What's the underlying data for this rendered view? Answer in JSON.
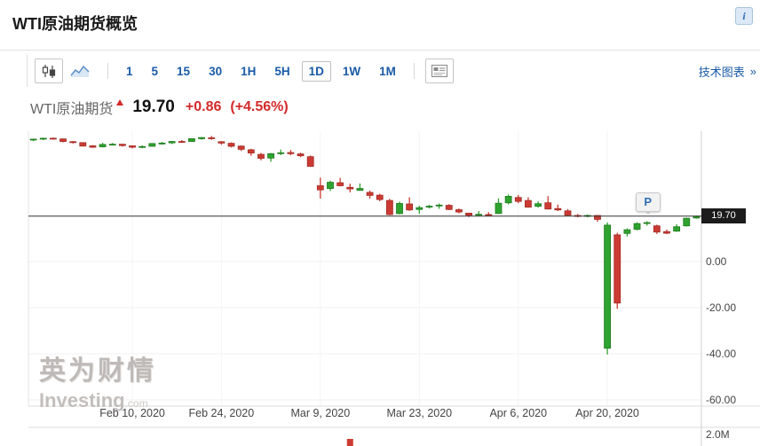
{
  "widget": {
    "title": "WTI原油期货概览",
    "info_icon": "i"
  },
  "toolbar": {
    "chart_types": [
      "candlestick",
      "line"
    ],
    "intervals": [
      "1",
      "5",
      "15",
      "30",
      "1H",
      "5H",
      "1D",
      "1W",
      "1M"
    ],
    "selected_interval": "1D",
    "link": "技术图表",
    "link_arrow": "»"
  },
  "quote": {
    "name": "WTI原油期货",
    "direction": "up",
    "price": "19.70",
    "change": "+0.86",
    "change_percent": "(+4.56%)"
  },
  "watermark": {
    "cn": "英为财情",
    "en": "Investing",
    "tld": ".com"
  },
  "colors": {
    "up": "#2fa32f",
    "up_border": "#1d7a1d",
    "down": "#cc3b33",
    "down_border": "#a32a24",
    "accent_blue": "#1a5ba6",
    "quote_red": "#d42a2a",
    "price_line": "#333333",
    "badge_bg": "#1c1c1c",
    "grid": "#f0f0f0",
    "axis_line": "#cccccc",
    "axis_text": "#444444"
  },
  "chart_data": {
    "type": "candlestick",
    "title": "WTI原油期货 1D",
    "current_price": "19.70",
    "current_price_value": 19.7,
    "x_labels": [
      "Feb 10, 2020",
      "Feb 24, 2020",
      "Mar 9, 2020",
      "Mar 23, 2020",
      "Apr 6, 2020",
      "Apr 20, 2020"
    ],
    "y_labels": [
      {
        "text": "0.00",
        "value": 0
      },
      {
        "text": "-20.00",
        "value": -20
      },
      {
        "text": "-40.00",
        "value": -40
      },
      {
        "text": "-60.00",
        "value": -60
      }
    ],
    "y_range": [
      -62,
      57
    ],
    "volume_label": "2.0M",
    "volume_visible_bar_date": "Mar 12, 2020",
    "marker": {
      "label": "P",
      "date": "Apr 24, 2020"
    },
    "candles": [
      {
        "d": "Jan 27, 2020",
        "o": 53.0,
        "h": 53.3,
        "l": 52.2,
        "c": 53.1
      },
      {
        "d": "Jan 28, 2020",
        "o": 53.1,
        "h": 53.7,
        "l": 52.7,
        "c": 53.5
      },
      {
        "d": "Jan 29, 2020",
        "o": 53.5,
        "h": 53.8,
        "l": 52.9,
        "c": 53.3
      },
      {
        "d": "Jan 30, 2020",
        "o": 53.2,
        "h": 53.4,
        "l": 51.7,
        "c": 52.1
      },
      {
        "d": "Jan 31, 2020",
        "o": 52.0,
        "h": 52.3,
        "l": 51.2,
        "c": 51.6
      },
      {
        "d": "Feb 3, 2020",
        "o": 51.6,
        "h": 51.7,
        "l": 49.9,
        "c": 50.1
      },
      {
        "d": "Feb 4, 2020",
        "o": 50.2,
        "h": 50.5,
        "l": 49.3,
        "c": 49.6
      },
      {
        "d": "Feb 5, 2020",
        "o": 49.8,
        "h": 51.5,
        "l": 49.5,
        "c": 50.8
      },
      {
        "d": "Feb 6, 2020",
        "o": 50.8,
        "h": 51.4,
        "l": 50.4,
        "c": 50.9
      },
      {
        "d": "Feb 7, 2020",
        "o": 50.9,
        "h": 51.0,
        "l": 49.9,
        "c": 50.3
      },
      {
        "d": "Feb 10, 2020",
        "o": 50.2,
        "h": 50.4,
        "l": 49.1,
        "c": 49.6
      },
      {
        "d": "Feb 11, 2020",
        "o": 49.7,
        "h": 50.4,
        "l": 49.2,
        "c": 49.9
      },
      {
        "d": "Feb 12, 2020",
        "o": 50.0,
        "h": 51.4,
        "l": 49.9,
        "c": 51.2
      },
      {
        "d": "Feb 13, 2020",
        "o": 51.1,
        "h": 51.9,
        "l": 50.7,
        "c": 51.4
      },
      {
        "d": "Feb 14, 2020",
        "o": 51.5,
        "h": 52.3,
        "l": 51.0,
        "c": 52.1
      },
      {
        "d": "Feb 18, 2020",
        "o": 52.1,
        "h": 52.7,
        "l": 51.5,
        "c": 52.0
      },
      {
        "d": "Feb 19, 2020",
        "o": 52.1,
        "h": 53.5,
        "l": 51.9,
        "c": 53.3
      },
      {
        "d": "Feb 20, 2020",
        "o": 53.3,
        "h": 54.0,
        "l": 52.9,
        "c": 53.8
      },
      {
        "d": "Feb 21, 2020",
        "o": 53.7,
        "h": 54.5,
        "l": 52.8,
        "c": 53.4
      },
      {
        "d": "Feb 24, 2020",
        "o": 52.0,
        "h": 52.2,
        "l": 50.7,
        "c": 51.4
      },
      {
        "d": "Feb 25, 2020",
        "o": 51.3,
        "h": 51.7,
        "l": 49.5,
        "c": 50.0
      },
      {
        "d": "Feb 26, 2020",
        "o": 50.1,
        "h": 50.3,
        "l": 48.0,
        "c": 48.7
      },
      {
        "d": "Feb 27, 2020",
        "o": 48.5,
        "h": 48.9,
        "l": 45.9,
        "c": 47.1
      },
      {
        "d": "Feb 28, 2020",
        "o": 46.5,
        "h": 47.1,
        "l": 43.9,
        "c": 44.8
      },
      {
        "d": "Mar 2, 2020",
        "o": 44.9,
        "h": 47.1,
        "l": 43.3,
        "c": 46.8
      },
      {
        "d": "Mar 3, 2020",
        "o": 46.9,
        "h": 48.6,
        "l": 46.2,
        "c": 47.2
      },
      {
        "d": "Mar 4, 2020",
        "o": 47.3,
        "h": 48.4,
        "l": 46.1,
        "c": 46.8
      },
      {
        "d": "Mar 5, 2020",
        "o": 46.7,
        "h": 47.2,
        "l": 45.3,
        "c": 45.9
      },
      {
        "d": "Mar 6, 2020",
        "o": 45.5,
        "h": 46.0,
        "l": 41.1,
        "c": 41.3
      },
      {
        "d": "Mar 9, 2020",
        "o": 32.9,
        "h": 36.4,
        "l": 27.3,
        "c": 31.1
      },
      {
        "d": "Mar 10, 2020",
        "o": 31.7,
        "h": 35.1,
        "l": 30.6,
        "c": 34.4
      },
      {
        "d": "Mar 11, 2020",
        "o": 34.2,
        "h": 36.3,
        "l": 32.6,
        "c": 32.9
      },
      {
        "d": "Mar 12, 2020",
        "o": 32.2,
        "h": 33.8,
        "l": 30.0,
        "c": 31.5
      },
      {
        "d": "Mar 13, 2020",
        "o": 30.9,
        "h": 33.9,
        "l": 30.8,
        "c": 31.7
      },
      {
        "d": "Mar 16, 2020",
        "o": 30.0,
        "h": 30.8,
        "l": 27.3,
        "c": 28.7
      },
      {
        "d": "Mar 17, 2020",
        "o": 28.8,
        "h": 29.4,
        "l": 26.2,
        "c": 26.9
      },
      {
        "d": "Mar 18, 2020",
        "o": 26.5,
        "h": 27.2,
        "l": 20.1,
        "c": 20.4
      },
      {
        "d": "Mar 19, 2020",
        "o": 20.8,
        "h": 26.0,
        "l": 20.5,
        "c": 25.2
      },
      {
        "d": "Mar 20, 2020",
        "o": 25.0,
        "h": 27.9,
        "l": 22.0,
        "c": 22.4
      },
      {
        "d": "Mar 23, 2020",
        "o": 22.6,
        "h": 24.2,
        "l": 20.8,
        "c": 23.4
      },
      {
        "d": "Mar 24, 2020",
        "o": 23.7,
        "h": 24.6,
        "l": 23.0,
        "c": 24.0
      },
      {
        "d": "Mar 25, 2020",
        "o": 24.2,
        "h": 25.2,
        "l": 22.9,
        "c": 24.5
      },
      {
        "d": "Mar 26, 2020",
        "o": 24.4,
        "h": 24.9,
        "l": 22.3,
        "c": 22.6
      },
      {
        "d": "Mar 27, 2020",
        "o": 22.5,
        "h": 23.0,
        "l": 20.9,
        "c": 21.5
      },
      {
        "d": "Mar 30, 2020",
        "o": 21.0,
        "h": 21.1,
        "l": 19.3,
        "c": 20.1
      },
      {
        "d": "Mar 31, 2020",
        "o": 20.3,
        "h": 21.9,
        "l": 19.9,
        "c": 20.5
      },
      {
        "d": "Apr 1, 2020",
        "o": 20.4,
        "h": 21.4,
        "l": 19.9,
        "c": 20.3
      },
      {
        "d": "Apr 2, 2020",
        "o": 20.9,
        "h": 27.4,
        "l": 20.6,
        "c": 25.3
      },
      {
        "d": "Apr 3, 2020",
        "o": 25.5,
        "h": 29.1,
        "l": 24.8,
        "c": 28.3
      },
      {
        "d": "Apr 6, 2020",
        "o": 27.8,
        "h": 28.9,
        "l": 25.3,
        "c": 26.1
      },
      {
        "d": "Apr 7, 2020",
        "o": 26.5,
        "h": 27.9,
        "l": 23.4,
        "c": 23.6
      },
      {
        "d": "Apr 8, 2020",
        "o": 24.0,
        "h": 26.2,
        "l": 23.4,
        "c": 25.1
      },
      {
        "d": "Apr 9, 2020",
        "o": 25.5,
        "h": 28.4,
        "l": 22.6,
        "c": 22.8
      },
      {
        "d": "Apr 13, 2020",
        "o": 23.0,
        "h": 24.7,
        "l": 21.9,
        "c": 22.4
      },
      {
        "d": "Apr 14, 2020",
        "o": 22.0,
        "h": 22.8,
        "l": 19.7,
        "c": 20.1
      },
      {
        "d": "Apr 15, 2020",
        "o": 20.0,
        "h": 20.6,
        "l": 19.2,
        "c": 19.9
      },
      {
        "d": "Apr 16, 2020",
        "o": 19.9,
        "h": 20.4,
        "l": 19.2,
        "c": 20.0
      },
      {
        "d": "Apr 17, 2020",
        "o": 20.0,
        "h": 20.1,
        "l": 17.3,
        "c": 18.3
      },
      {
        "d": "Apr 20, 2020",
        "o": -37.6,
        "h": 17.0,
        "l": -40.3,
        "c": 15.8
      },
      {
        "d": "Apr 21, 2020",
        "o": 11.6,
        "h": 12.5,
        "l": -20.5,
        "c": -18.0
      },
      {
        "d": "Apr 22, 2020",
        "o": 12.2,
        "h": 14.4,
        "l": 10.9,
        "c": 13.8
      },
      {
        "d": "Apr 23, 2020",
        "o": 14.0,
        "h": 17.0,
        "l": 13.5,
        "c": 16.5
      },
      {
        "d": "Apr 24, 2020",
        "o": 16.6,
        "h": 17.5,
        "l": 15.6,
        "c": 16.9
      },
      {
        "d": "Apr 27, 2020",
        "o": 15.5,
        "h": 16.0,
        "l": 12.0,
        "c": 12.8
      },
      {
        "d": "Apr 28, 2020",
        "o": 13.0,
        "h": 13.9,
        "l": 11.9,
        "c": 12.3
      },
      {
        "d": "Apr 29, 2020",
        "o": 13.2,
        "h": 16.2,
        "l": 12.9,
        "c": 15.1
      },
      {
        "d": "Apr 30, 2020",
        "o": 15.5,
        "h": 19.0,
        "l": 15.2,
        "c": 18.8
      },
      {
        "d": "May 1, 2020",
        "o": 18.9,
        "h": 20.0,
        "l": 18.6,
        "c": 19.7
      }
    ]
  }
}
